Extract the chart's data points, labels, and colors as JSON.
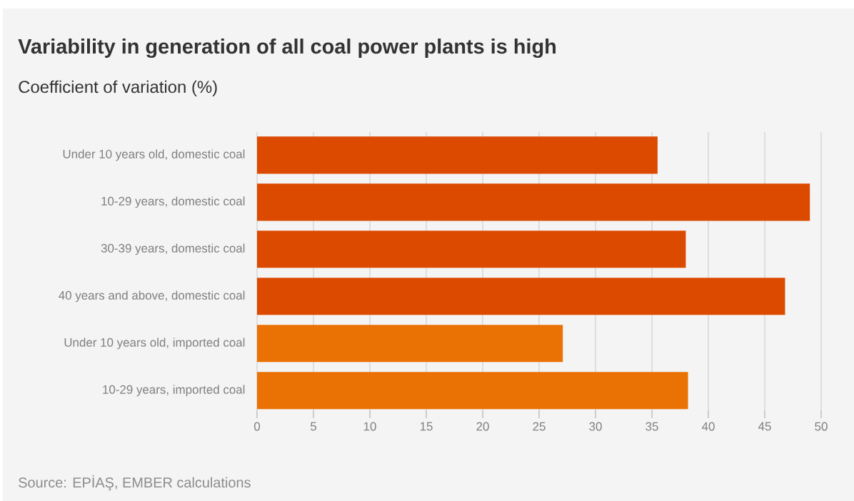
{
  "chart_data": {
    "type": "bar",
    "orientation": "horizontal",
    "title": "Variability in generation of all coal power plants is high",
    "subtitle": "Coefficient of variation (%)",
    "categories": [
      "Under 10 years old, domestic coal",
      "10-29 years, domestic coal",
      "30-39 years, domestic coal",
      "40 years and above, domestic coal",
      "Under 10 years old, imported coal",
      "10-29 years, imported coal"
    ],
    "values": [
      35.5,
      49.0,
      38.0,
      46.8,
      27.1,
      38.2
    ],
    "colors": [
      "#dc4a00",
      "#dc4a00",
      "#dc4a00",
      "#dc4a00",
      "#ea7204",
      "#ea7204"
    ],
    "xlim": [
      0,
      50
    ],
    "xticks": [
      0,
      5,
      10,
      15,
      20,
      25,
      30,
      35,
      40,
      45,
      50
    ],
    "grid": "x",
    "annotations": [
      "Source: EPİAŞ, EMBER calculations"
    ]
  }
}
